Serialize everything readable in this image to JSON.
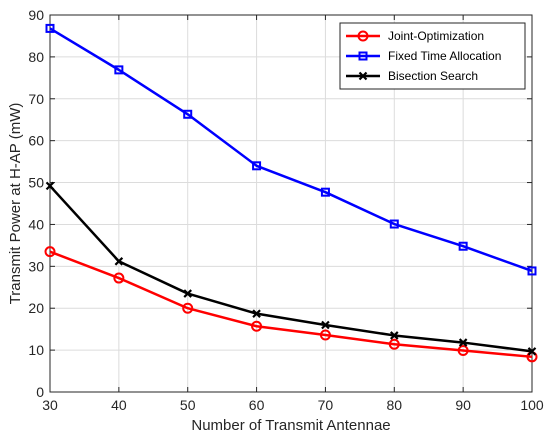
{
  "chart_data": {
    "type": "line",
    "title": "",
    "xlabel": "Number of Transmit Antennae",
    "ylabel": "Transmit Power at H-AP (mW)",
    "x": [
      30,
      40,
      50,
      60,
      70,
      80,
      90,
      100
    ],
    "xlim": [
      30,
      100
    ],
    "ylim": [
      0,
      90
    ],
    "xticks": [
      30,
      40,
      50,
      60,
      70,
      80,
      90,
      100
    ],
    "yticks": [
      0,
      10,
      20,
      30,
      40,
      50,
      60,
      70,
      80,
      90
    ],
    "grid": true,
    "legend_position": "top-right",
    "series": [
      {
        "name": "Joint-Optimization",
        "color": "#ff0000",
        "marker": "circle",
        "values": [
          33.5,
          27.2,
          20.0,
          15.7,
          13.6,
          11.4,
          9.9,
          8.4
        ]
      },
      {
        "name": "Fixed Time Allocation",
        "color": "#0000ff",
        "marker": "square",
        "values": [
          86.8,
          76.9,
          66.3,
          54.0,
          47.7,
          40.1,
          34.8,
          28.9
        ]
      },
      {
        "name": "Bisection Search",
        "color": "#000000",
        "marker": "x",
        "values": [
          49.2,
          31.2,
          23.5,
          18.7,
          16.0,
          13.5,
          11.8,
          9.7
        ]
      }
    ]
  }
}
